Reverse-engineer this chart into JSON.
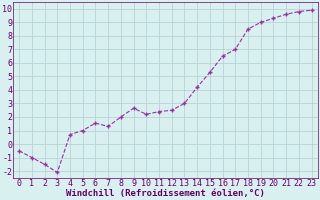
{
  "x": [
    0,
    1,
    2,
    3,
    4,
    5,
    6,
    7,
    8,
    9,
    10,
    11,
    12,
    13,
    14,
    15,
    16,
    17,
    18,
    19,
    20,
    21,
    22,
    23
  ],
  "y": [
    -0.5,
    -1.0,
    -1.5,
    -2.1,
    0.7,
    1.0,
    1.55,
    1.3,
    2.0,
    2.65,
    2.2,
    2.4,
    2.5,
    3.0,
    4.2,
    5.3,
    6.5,
    7.0,
    8.5,
    9.0,
    9.3,
    9.6,
    9.8,
    9.9
  ],
  "line_color": "#993399",
  "marker": "+",
  "marker_size": 3.5,
  "marker_color": "#993399",
  "bg_color": "#d8f0f0",
  "grid_color": "#b0cece",
  "xlabel": "Windchill (Refroidissement éolien,°C)",
  "xlim": [
    -0.5,
    23.5
  ],
  "ylim": [
    -2.5,
    10.5
  ],
  "xticks": [
    0,
    1,
    2,
    3,
    4,
    5,
    6,
    7,
    8,
    9,
    10,
    11,
    12,
    13,
    14,
    15,
    16,
    17,
    18,
    19,
    20,
    21,
    22,
    23
  ],
  "yticks": [
    -2,
    -1,
    0,
    1,
    2,
    3,
    4,
    5,
    6,
    7,
    8,
    9,
    10
  ],
  "xlabel_color": "#660066",
  "tick_color": "#660066",
  "axis_color": "#660066",
  "font": "monospace",
  "xlabel_fontsize": 6.5,
  "tick_fontsize": 6.0,
  "linewidth": 0.8,
  "line_style": "--"
}
